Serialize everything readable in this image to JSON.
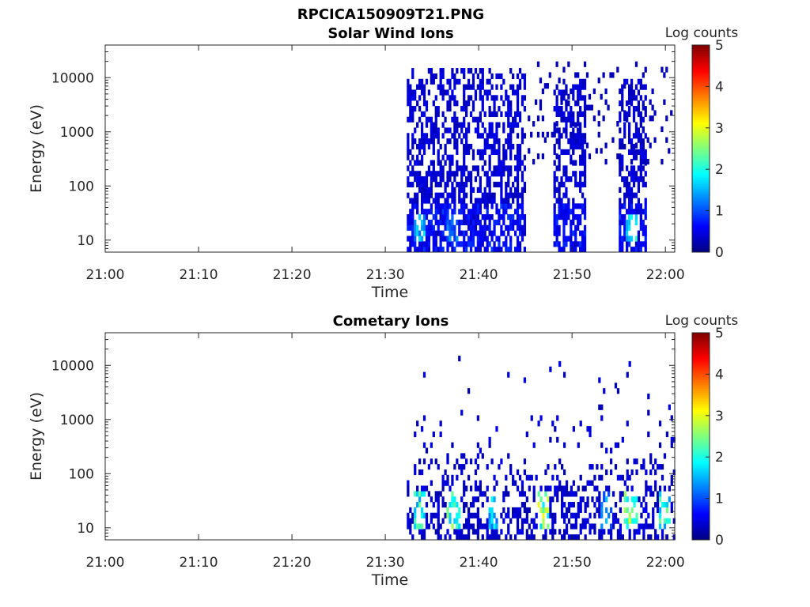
{
  "figure": {
    "title": "RPCICA150909T21.PNG"
  },
  "colormap": {
    "name": "jet",
    "stops": [
      "#00007f",
      "#0000ff",
      "#007fff",
      "#00ffff",
      "#7fff7f",
      "#ffff00",
      "#ff7f00",
      "#ff0000",
      "#7f0000"
    ]
  },
  "chart_data": [
    {
      "type": "heatmap",
      "title": "Solar Wind Ions",
      "xlabel": "Time",
      "ylabel": "Energy (eV)",
      "x_ticks": [
        "21:00",
        "21:10",
        "21:20",
        "21:30",
        "21:40",
        "21:50",
        "22:00"
      ],
      "x_range_min": [
        0,
        61
      ],
      "y_ticks": [
        "10",
        "100",
        "1000",
        "10000"
      ],
      "y_scale": "log",
      "y_range_eV": [
        6,
        40000
      ],
      "colorbar": {
        "label": "Log counts",
        "ticks": [
          "0",
          "1",
          "2",
          "3",
          "4",
          "5"
        ],
        "range": [
          0,
          5
        ]
      },
      "segments": [
        {
          "start_min": 32.3,
          "end_min": 45.0,
          "max_log_eV": 4.15,
          "low_band_peak_log_counts": 2.0,
          "hot_spots": [
            {
              "t_min": 33.5,
              "log_counts": 1.8
            },
            {
              "t_min": 37.0,
              "log_counts": 1.4
            }
          ]
        },
        {
          "start_min": 48.0,
          "end_min": 51.5,
          "max_log_eV": 3.9,
          "low_band_peak_log_counts": 1.0,
          "hot_spots": []
        },
        {
          "start_min": 55.0,
          "end_min": 58.0,
          "max_log_eV": 3.9,
          "low_band_peak_log_counts": 2.3,
          "hot_spots": [
            {
              "t_min": 56.2,
              "log_counts": 2.2
            }
          ]
        }
      ],
      "sparse_high_energy_min": [
        45.0,
        61.0
      ]
    },
    {
      "type": "heatmap",
      "title": "Cometary Ions",
      "xlabel": "Time",
      "ylabel": "Energy (eV)",
      "x_ticks": [
        "21:00",
        "21:10",
        "21:20",
        "21:30",
        "21:40",
        "21:50",
        "22:00"
      ],
      "x_range_min": [
        0,
        61
      ],
      "y_ticks": [
        "10",
        "100",
        "1000",
        "10000"
      ],
      "y_scale": "log",
      "y_range_eV": [
        6,
        40000
      ],
      "colorbar": {
        "label": "Log counts",
        "ticks": [
          "0",
          "1",
          "2",
          "3",
          "4",
          "5"
        ],
        "range": [
          0,
          5
        ]
      },
      "data_start_min": 32.3,
      "data_end_min": 61.0,
      "hot_spots": [
        {
          "t_min": 33.5,
          "log_counts": 2.5
        },
        {
          "t_min": 37.2,
          "log_counts": 2.8
        },
        {
          "t_min": 41.5,
          "log_counts": 2.0
        },
        {
          "t_min": 46.8,
          "log_counts": 3.1
        },
        {
          "t_min": 53.5,
          "log_counts": 1.6
        },
        {
          "t_min": 56.2,
          "log_counts": 3.2
        },
        {
          "t_min": 59.8,
          "log_counts": 2.5
        }
      ]
    }
  ]
}
